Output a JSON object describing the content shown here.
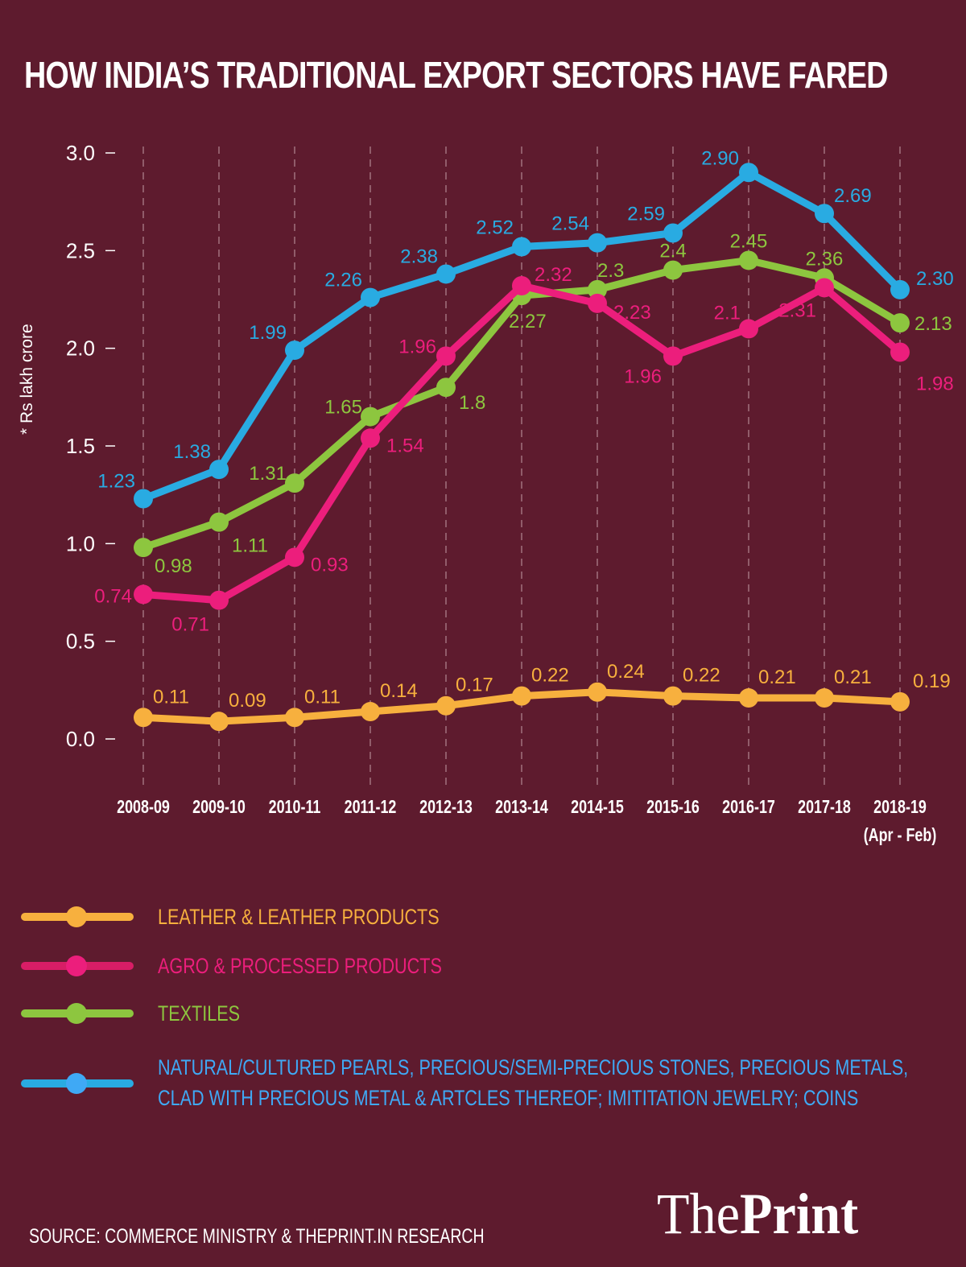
{
  "header": {
    "title": "HOW INDIA’S TRADITIONAL EXPORT SECTORS HAVE FARED"
  },
  "colors": {
    "background": "#5e1b2e",
    "leather": "#f7b03e",
    "agro": "#ec1e7c",
    "textiles": "#8dc63f",
    "gems": "#29abe2",
    "gridline": "#c9a3ad",
    "text": "#ffffff"
  },
  "chart_data": {
    "type": "line",
    "title": "HOW INDIA’S TRADITIONAL EXPORT SECTORS HAVE FARED",
    "xlabel": "",
    "ylabel": "* Rs lakh crore",
    "ylim": [
      0,
      3.0
    ],
    "yticks": [
      "0.0",
      "0.5",
      "1.0",
      "1.5",
      "2.0",
      "2.5",
      "3.0"
    ],
    "ytick_values": [
      0,
      0.5,
      1.0,
      1.5,
      2.0,
      2.5,
      3.0
    ],
    "grid": "vertical-dashed",
    "categories": [
      "2008-09",
      "2009-10",
      "2010-11",
      "2011-12",
      "2012-13",
      "2013-14",
      "2014-15",
      "2015-16",
      "2016-17",
      "2017-18",
      "2018-19"
    ],
    "category_sublabels": [
      "",
      "",
      "",
      "",
      "",
      "",
      "",
      "",
      "",
      "",
      "(Apr - Feb)"
    ],
    "legend_position": "bottom",
    "series": [
      {
        "key": "leather",
        "name": "LEATHER & LEATHER PRODUCTS",
        "color": "#f7b03e",
        "values": [
          0.11,
          0.09,
          0.11,
          0.14,
          0.17,
          0.22,
          0.24,
          0.22,
          0.21,
          0.21,
          0.19
        ],
        "labels": [
          "0.11",
          "0.09",
          "0.11",
          "0.14",
          "0.17",
          "0.22",
          "0.24",
          "0.22",
          "0.21",
          "0.21",
          "0.19"
        ]
      },
      {
        "key": "agro",
        "name": "AGRO & PROCESSED PRODUCTS",
        "color": "#ec1e7c",
        "values": [
          0.74,
          0.71,
          0.93,
          1.54,
          1.96,
          2.32,
          2.23,
          1.96,
          2.1,
          2.31,
          1.98
        ],
        "labels": [
          "0.74",
          "0.71",
          "0.93",
          "1.54",
          "1.96",
          "2.32",
          "2.23",
          "1.96",
          "2.1",
          "2.31",
          "1.98"
        ]
      },
      {
        "key": "textiles",
        "name": "TEXTILES",
        "color": "#8dc63f",
        "values": [
          0.98,
          1.11,
          1.31,
          1.65,
          1.8,
          2.27,
          2.3,
          2.4,
          2.45,
          2.36,
          2.13
        ],
        "labels": [
          "0.98",
          "1.11",
          "1.31",
          "1.65",
          "1.8",
          "2.27",
          "2.3",
          "2.4",
          "2.45",
          "2.36",
          "2.13"
        ]
      },
      {
        "key": "gems",
        "name": "NATURAL/CULTURED PEARLS, PRECIOUS/SEMI-PRECIOUS STONES, PRECIOUS METALS, CLAD WITH PRECIOUS METAL & ARTCLES THEREOF; IMITITATION JEWELRY; COINS",
        "color": "#29abe2",
        "values": [
          1.23,
          1.38,
          1.99,
          2.26,
          2.38,
          2.52,
          2.54,
          2.59,
          2.9,
          2.69,
          2.3
        ],
        "labels": [
          "1.23",
          "1.38",
          "1.99",
          "2.26",
          "2.38",
          "2.52",
          "2.54",
          "2.59",
          "2.90",
          "2.69",
          "2.30"
        ]
      }
    ]
  },
  "legend": {
    "items": [
      {
        "key": "leather",
        "line1": "LEATHER & LEATHER PRODUCTS",
        "line2": ""
      },
      {
        "key": "agro",
        "line1": "AGRO & PROCESSED PRODUCTS",
        "line2": ""
      },
      {
        "key": "textiles",
        "line1": "TEXTILES",
        "line2": ""
      },
      {
        "key": "gems",
        "line1": "NATURAL/CULTURED PEARLS, PRECIOUS/SEMI-PRECIOUS STONES, PRECIOUS METALS,",
        "line2": "CLAD WITH PRECIOUS METAL & ARTCLES THEREOF; IMITITATION JEWELRY; COINS"
      }
    ]
  },
  "footer": {
    "source": "SOURCE: COMMERCE MINISTRY & THEPRINT.IN RESEARCH",
    "logo_light": "The",
    "logo_bold": "Print"
  }
}
